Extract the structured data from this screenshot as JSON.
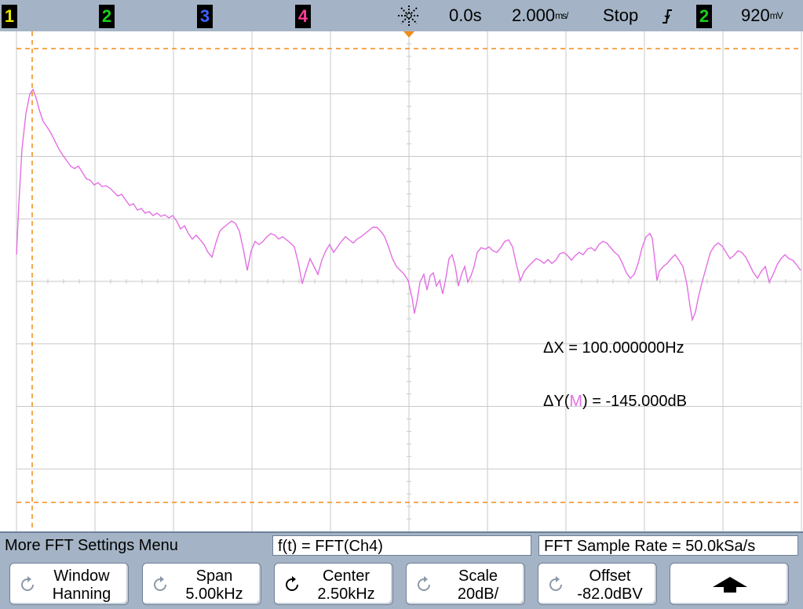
{
  "topbar": {
    "channels": [
      {
        "label": "1",
        "color": "#e8e800"
      },
      {
        "label": "2",
        "color": "#19d219"
      },
      {
        "label": "3",
        "color": "#3b63ff"
      },
      {
        "label": "4",
        "color": "#ff3b9a"
      }
    ],
    "time_position": "0.0s",
    "time_scale": "2.000",
    "time_scale_unit": "ms/",
    "run_state": "Stop",
    "trigger_source": "2",
    "trigger_level": "920",
    "trigger_level_unit": "mV"
  },
  "measurements": {
    "delta_x": "ΔX = 100.000000Hz",
    "delta_y_prefix": "ΔY(",
    "delta_y_source": "M",
    "delta_y_suffix": ") = -145.000dB"
  },
  "colors": {
    "trace": "#e36fe3",
    "cursor": "#f28c1a",
    "grid": "#c9c9c9",
    "menu_bg": "#a4b4c6"
  },
  "menu": {
    "title": "More FFT Settings Menu",
    "function": "f(t) = FFT(Ch4)",
    "sample_rate": "FFT Sample Rate = 50.0kSa/s"
  },
  "softkeys": [
    {
      "label": "Window",
      "value": "Hanning",
      "icon": "rotate-knob-icon"
    },
    {
      "label": "Span",
      "value": "5.00kHz",
      "icon": "rotate-knob-icon"
    },
    {
      "label": "Center",
      "value": "2.50kHz",
      "icon": "rotate-knob-icon"
    },
    {
      "label": "Scale",
      "value": "20dB/",
      "icon": "rotate-knob-icon"
    },
    {
      "label": "Offset",
      "value": "-82.0dBV",
      "icon": "rotate-knob-icon"
    },
    {
      "label": "",
      "value": "",
      "icon": "up-arrow-icon"
    }
  ]
}
